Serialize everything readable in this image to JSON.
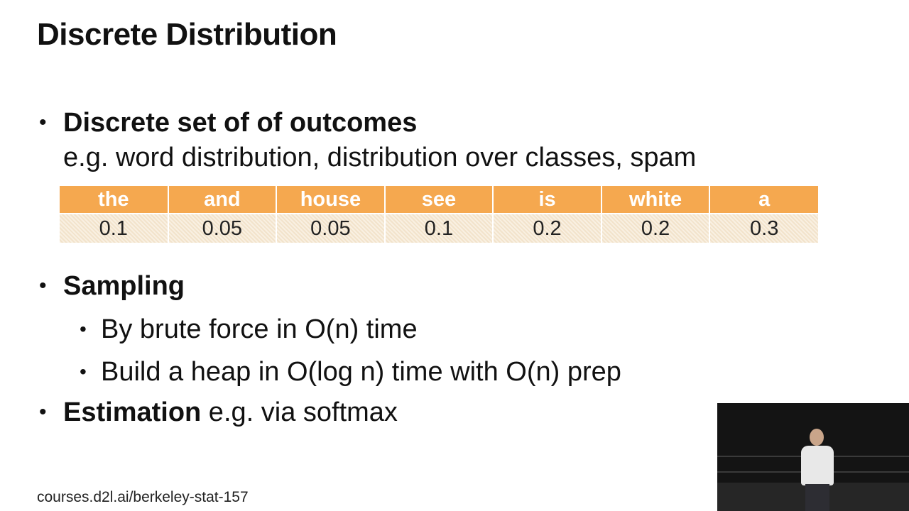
{
  "slide": {
    "title": "Discrete Distribution"
  },
  "bullets": {
    "outcomes": {
      "heading": "Discrete set of of outcomes",
      "example": "e.g. word distribution, distribution over classes, spam"
    },
    "sampling": {
      "heading": "Sampling",
      "items": [
        "By brute force in O(n) time",
        "Build a heap in O(log n) time with O(n) prep"
      ]
    },
    "estimation": {
      "heading": "Estimation",
      "rest": " e.g. via softmax"
    }
  },
  "table": {
    "words": [
      "the",
      "and",
      "house",
      "see",
      "is",
      "white",
      "a"
    ],
    "probs": [
      "0.1",
      "0.05",
      "0.05",
      "0.1",
      "0.2",
      "0.2",
      "0.3"
    ]
  },
  "footer": {
    "url": "courses.d2l.ai/berkeley-stat-157"
  },
  "colors": {
    "header_fill": "#f5a84f",
    "cell_fill": "#f6e8d3"
  }
}
